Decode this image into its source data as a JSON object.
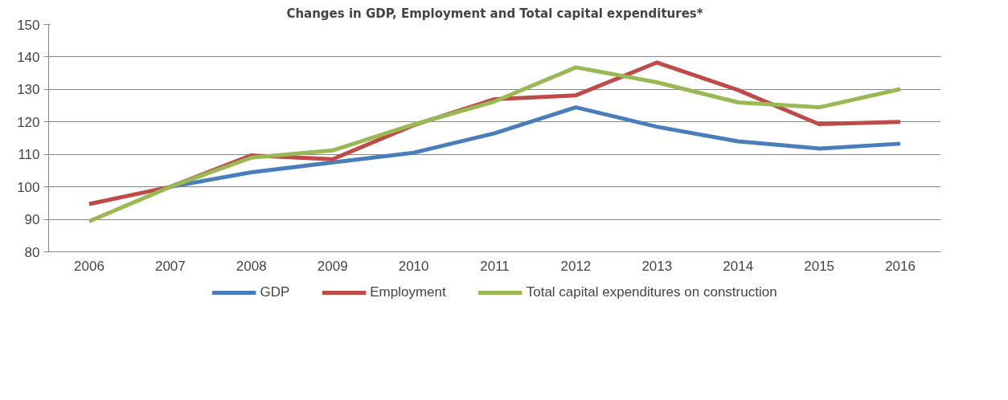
{
  "chart_data": {
    "type": "line",
    "title": "Changes in GDP, Employment and Total capital expenditures*",
    "categories": [
      "2006",
      "2007",
      "2008",
      "2009",
      "2010",
      "2011",
      "2012",
      "2013",
      "2014",
      "2015",
      "2016"
    ],
    "series": [
      {
        "name": "GDP",
        "color": "#4a7ebb",
        "values": [
          null,
          100,
          104.5,
          107.5,
          110.5,
          116.5,
          124.5,
          118.5,
          114,
          111.8,
          113.3
        ]
      },
      {
        "name": "Employment",
        "color": "#be4b48",
        "values": [
          94.7,
          100,
          109.7,
          108.5,
          119,
          127,
          128.2,
          138.3,
          129.8,
          119.3,
          120
        ]
      },
      {
        "name": "Total capital expenditures on construction",
        "color": "#98b954",
        "values": [
          89.4,
          100,
          109,
          111.2,
          119.2,
          126.3,
          136.8,
          132.2,
          126,
          124.5,
          130.1
        ]
      }
    ],
    "ylim": [
      80,
      150
    ],
    "yticks": [
      80,
      90,
      100,
      110,
      120,
      130,
      140,
      150
    ],
    "grid": "y",
    "legend": "bottom",
    "marker": "none",
    "line_style": "solid"
  }
}
